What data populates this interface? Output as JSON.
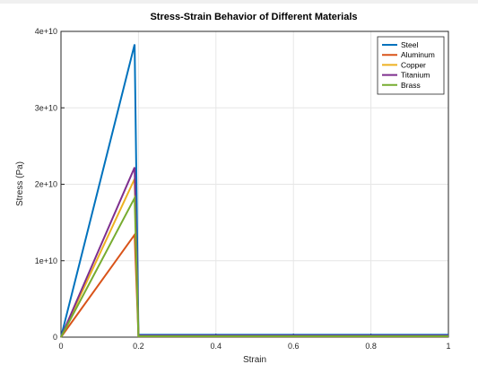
{
  "chart_data": {
    "type": "line",
    "title": "Stress-Strain Behavior of Different Materials",
    "xlabel": "Strain",
    "ylabel": "Stress (Pa)",
    "xlim": [
      0,
      1
    ],
    "ylim": [
      0,
      40000000000
    ],
    "x_ticks": [
      0,
      0.2,
      0.4,
      0.6,
      0.8,
      1
    ],
    "x_tick_labels": [
      "0",
      "0.2",
      "0.4",
      "0.6",
      "0.8",
      "1"
    ],
    "y_ticks": [
      0,
      10000000000,
      20000000000,
      30000000000,
      40000000000
    ],
    "y_tick_labels": [
      "0",
      "1e+10",
      "2e+10",
      "3e+10",
      "4e+10"
    ],
    "grid": true,
    "legend_position": "top-right",
    "series": [
      {
        "name": "Steel",
        "color": "#0072BD",
        "x": [
          0,
          0.19,
          0.2,
          1
        ],
        "y": [
          0,
          38300000000,
          300000000,
          300000000
        ]
      },
      {
        "name": "Aluminum",
        "color": "#D95319",
        "x": [
          0,
          0.19,
          0.2,
          1
        ],
        "y": [
          0,
          13400000000,
          100000000,
          100000000
        ]
      },
      {
        "name": "Copper",
        "color": "#EDB120",
        "x": [
          0,
          0.19,
          0.2,
          1
        ],
        "y": [
          0,
          20700000000,
          150000000,
          150000000
        ]
      },
      {
        "name": "Titanium",
        "color": "#7E2F8E",
        "x": [
          0,
          0.19,
          0.2,
          1
        ],
        "y": [
          0,
          22200000000,
          200000000,
          200000000
        ]
      },
      {
        "name": "Brass",
        "color": "#77AC30",
        "x": [
          0,
          0.19,
          0.2,
          1
        ],
        "y": [
          0,
          18200000000,
          120000000,
          120000000
        ]
      }
    ]
  }
}
